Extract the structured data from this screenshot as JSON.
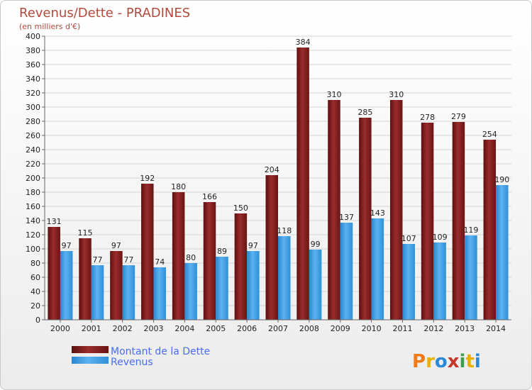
{
  "chart_data": {
    "type": "bar",
    "title": "Revenus/Dette - PRADINES",
    "subtitle": "(en milliers d'€)",
    "categories": [
      "2000",
      "2001",
      "2002",
      "2003",
      "2004",
      "2005",
      "2006",
      "2007",
      "2008",
      "2009",
      "2010",
      "2011",
      "2012",
      "2013",
      "2014"
    ],
    "series": [
      {
        "name": "Montant de la Dette",
        "color": "#8b1e1e",
        "values": [
          131,
          115,
          97,
          192,
          180,
          166,
          150,
          204,
          384,
          310,
          285,
          310,
          278,
          279,
          254
        ]
      },
      {
        "name": "Revenus",
        "color": "#3a9be0",
        "values": [
          97,
          77,
          77,
          74,
          80,
          89,
          97,
          118,
          99,
          137,
          143,
          107,
          109,
          119,
          190
        ]
      }
    ],
    "ylim": [
      0,
      400
    ],
    "ytick_step": 20,
    "grid": true,
    "legend_position": "bottom-left",
    "logo_text": "Proxiti"
  }
}
